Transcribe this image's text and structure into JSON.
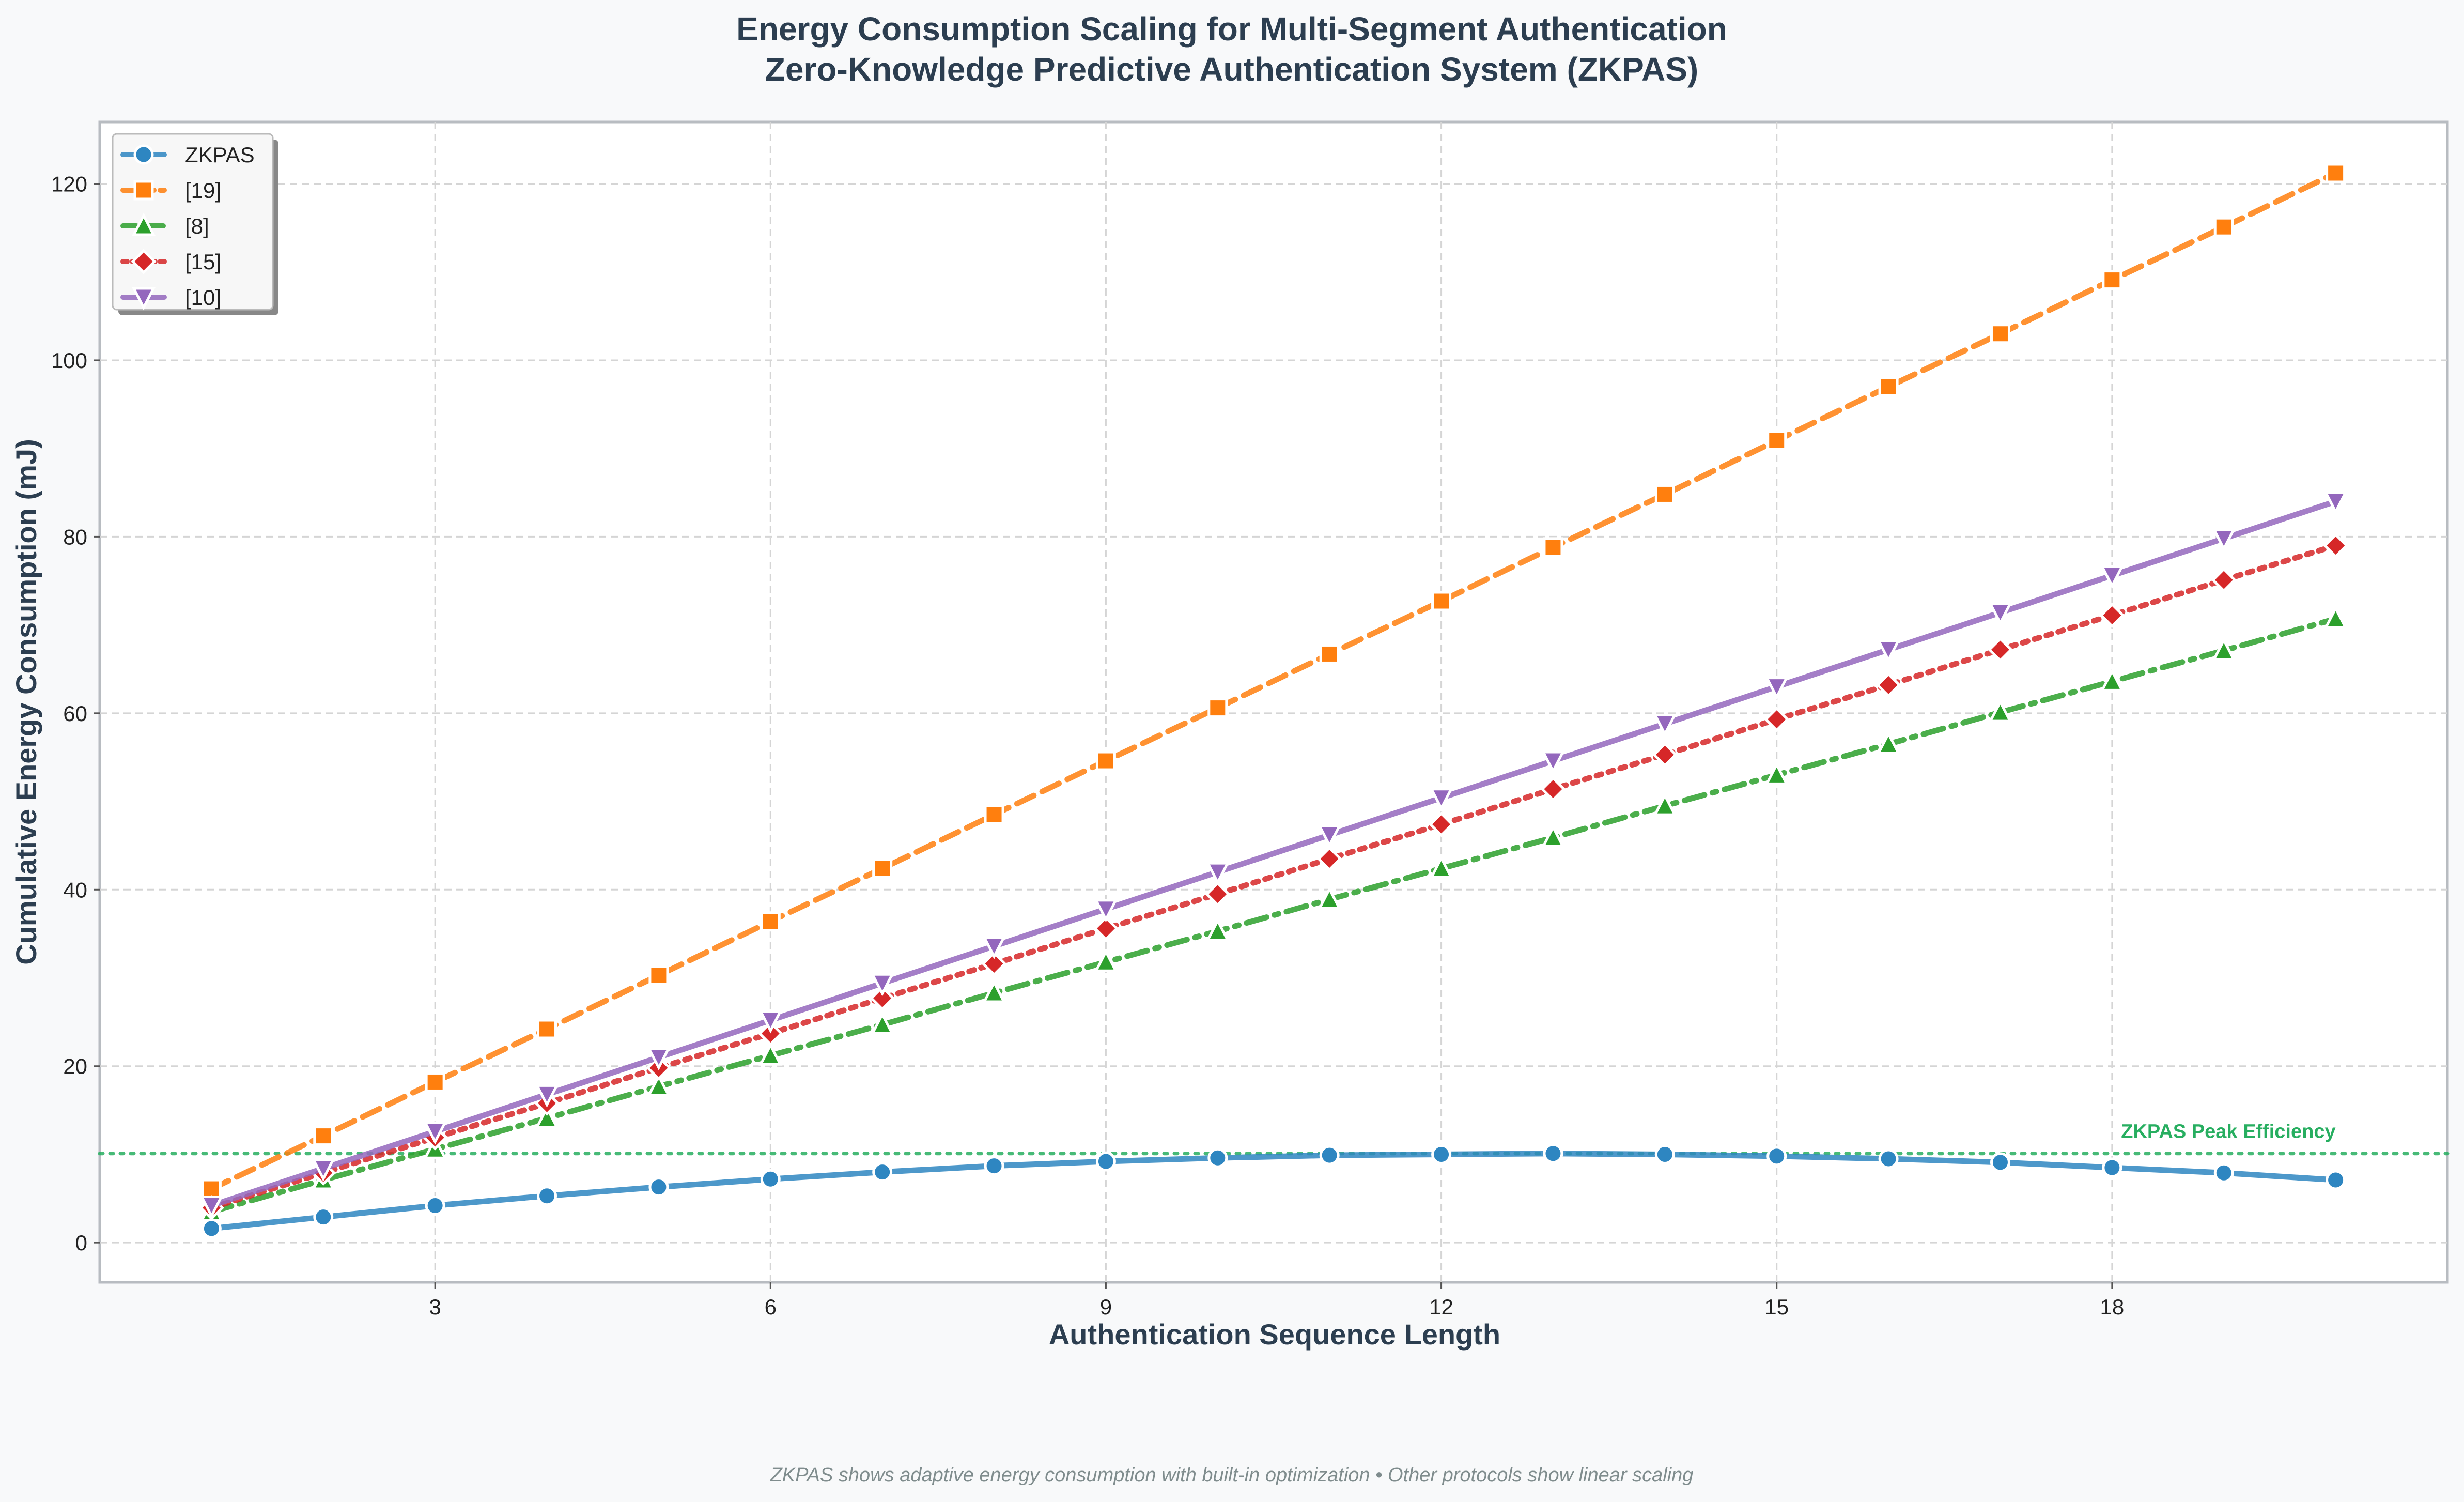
{
  "chart_data": {
    "type": "line",
    "title": "Energy Consumption Scaling for Multi-Segment Authentication",
    "subtitle": "Zero-Knowledge Predictive Authentication System (ZKPAS)",
    "xlabel": "Authentication Sequence Length",
    "ylabel": "Cumulative Energy Consumption (mJ)",
    "xlim": [
      0,
      21
    ],
    "ylim": [
      -4.5,
      127
    ],
    "xticks": [
      3,
      6,
      9,
      12,
      15,
      18
    ],
    "yticks": [
      0,
      20,
      40,
      60,
      80,
      100,
      120
    ],
    "grid": true,
    "legend_position": "top-left",
    "x": [
      1,
      2,
      3,
      4,
      5,
      6,
      7,
      8,
      9,
      10,
      11,
      12,
      13,
      14,
      15,
      16,
      17,
      18,
      19,
      20
    ],
    "series": [
      {
        "name": "ZKPAS",
        "color": "#2e86c1",
        "marker": "circle",
        "dash": "solid",
        "values": [
          1.6,
          2.9,
          4.2,
          5.3,
          6.3,
          7.2,
          8.0,
          8.7,
          9.2,
          9.6,
          9.9,
          10.0,
          10.1,
          10.0,
          9.8,
          9.5,
          9.1,
          8.5,
          7.9,
          7.1
        ]
      },
      {
        "name": "[19]",
        "color": "#ff7f0e",
        "marker": "square",
        "dash": "dashed",
        "values": [
          6.1,
          12.1,
          18.2,
          24.2,
          30.3,
          36.4,
          42.4,
          48.5,
          54.6,
          60.6,
          66.7,
          72.7,
          78.8,
          84.8,
          90.9,
          97.0,
          103.0,
          109.1,
          115.1,
          121.2
        ]
      },
      {
        "name": "[8]",
        "color": "#2ca02c",
        "marker": "triangle-up",
        "dash": "dashdot",
        "values": [
          3.5,
          7.1,
          10.6,
          14.1,
          17.7,
          21.2,
          24.7,
          28.3,
          31.8,
          35.3,
          38.9,
          42.4,
          45.9,
          49.5,
          53.0,
          56.5,
          60.1,
          63.6,
          67.1,
          70.7
        ]
      },
      {
        "name": "[15]",
        "color": "#d62728",
        "marker": "diamond",
        "dash": "dotted",
        "values": [
          3.95,
          7.9,
          11.9,
          15.8,
          19.8,
          23.7,
          27.7,
          31.6,
          35.6,
          39.5,
          43.5,
          47.4,
          51.4,
          55.3,
          59.3,
          63.2,
          67.2,
          71.1,
          75.1,
          79.0
        ]
      },
      {
        "name": "[10]",
        "color": "#9467bd",
        "marker": "triangle-down",
        "dash": "solid",
        "values": [
          4.2,
          8.4,
          12.6,
          16.8,
          21.0,
          25.2,
          29.4,
          33.6,
          37.8,
          42.0,
          46.2,
          50.4,
          54.6,
          58.8,
          63.0,
          67.2,
          71.4,
          75.6,
          79.8,
          84.0
        ]
      }
    ],
    "reference_line": {
      "y": 10.1,
      "label": "ZKPAS Peak Efficiency",
      "color": "#27ae60"
    },
    "footnote": "ZKPAS shows adaptive energy consumption with built-in optimization • Other protocols show linear scaling"
  }
}
